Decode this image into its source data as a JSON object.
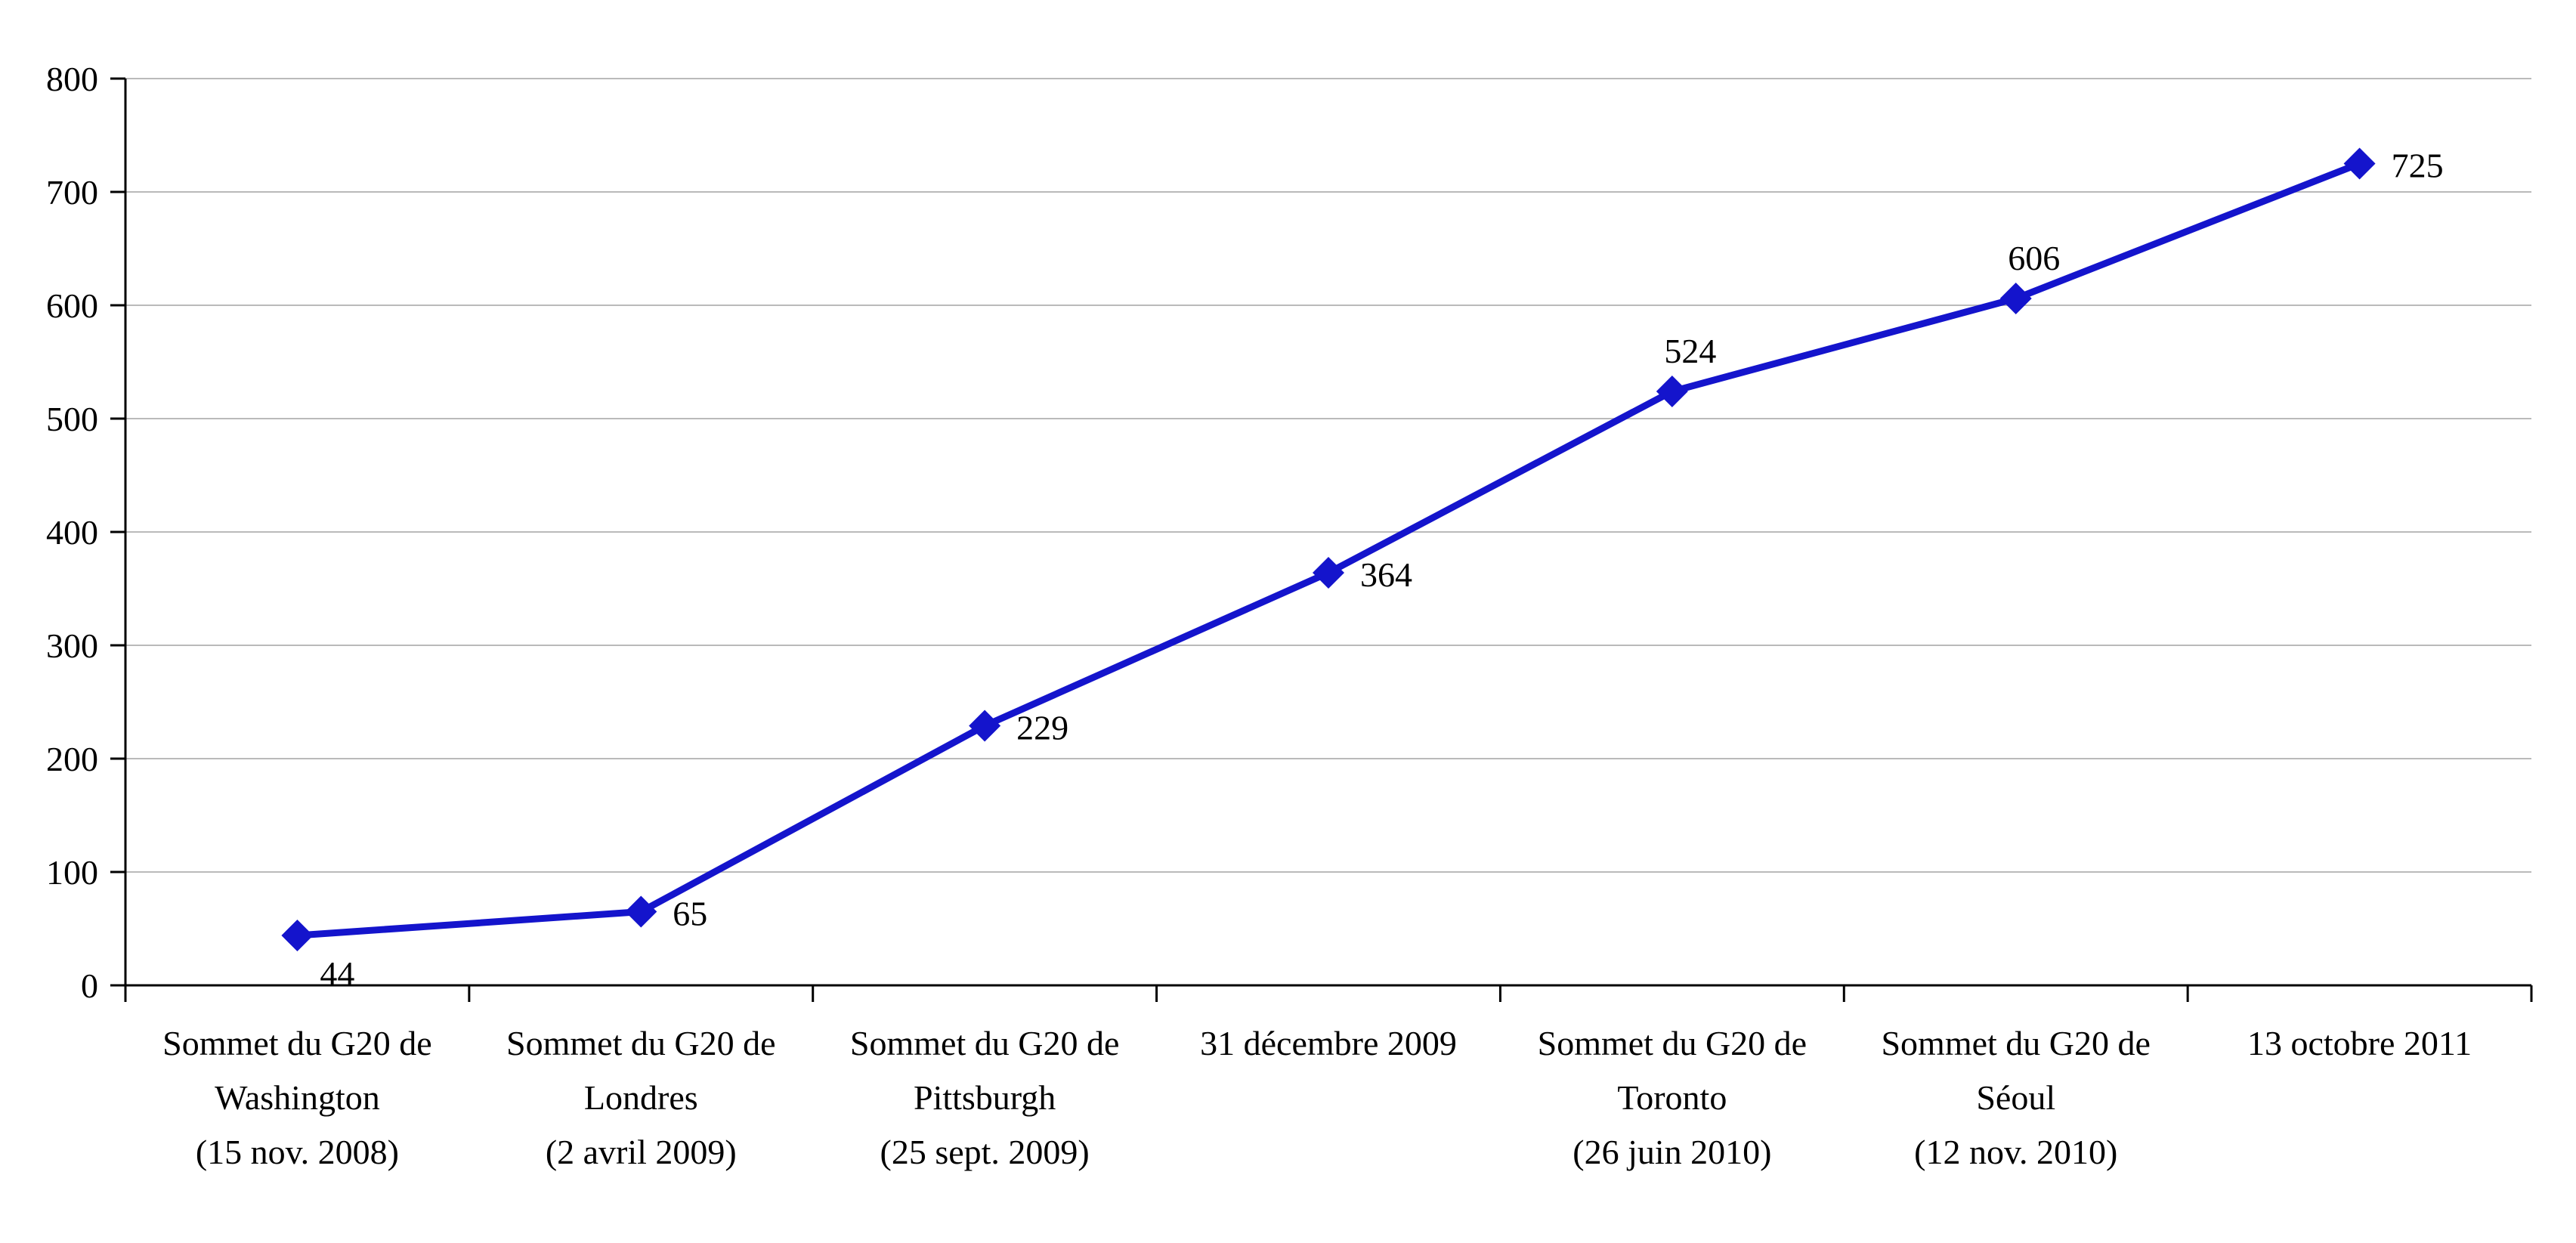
{
  "chart_data": {
    "type": "line",
    "title": "",
    "xlabel": "",
    "ylabel": "",
    "categories": [
      "Sommet du G20 de\nWashington\n(15 nov. 2008)",
      "Sommet du G20 de\nLondres\n(2 avril 2009)",
      "Sommet du G20 de\nPittsburgh\n(25 sept. 2009)",
      "31 décembre 2009",
      "Sommet du G20 de\nToronto\n(26 juin 2010)",
      "Sommet du G20 de\nSéoul\n(12 nov. 2010)",
      "13 octobre 2011"
    ],
    "values": [
      44,
      65,
      229,
      364,
      524,
      606,
      725
    ],
    "data_labels": [
      "44",
      "65",
      "229",
      "364",
      "524",
      "606",
      "725"
    ],
    "label_positions": [
      "below-right",
      "right",
      "right",
      "right",
      "above",
      "above",
      "right"
    ],
    "y_tick_labels": [
      "0",
      "100",
      "200",
      "300",
      "400",
      "500",
      "600",
      "700",
      "800"
    ],
    "ylim": [
      0,
      800
    ],
    "ytick_step": 100,
    "grid": "horizontal",
    "legend": "none",
    "marker": "diamond",
    "line_color": "#1414CC",
    "grid_color": "#BABABA",
    "axis_color": "#000000"
  }
}
